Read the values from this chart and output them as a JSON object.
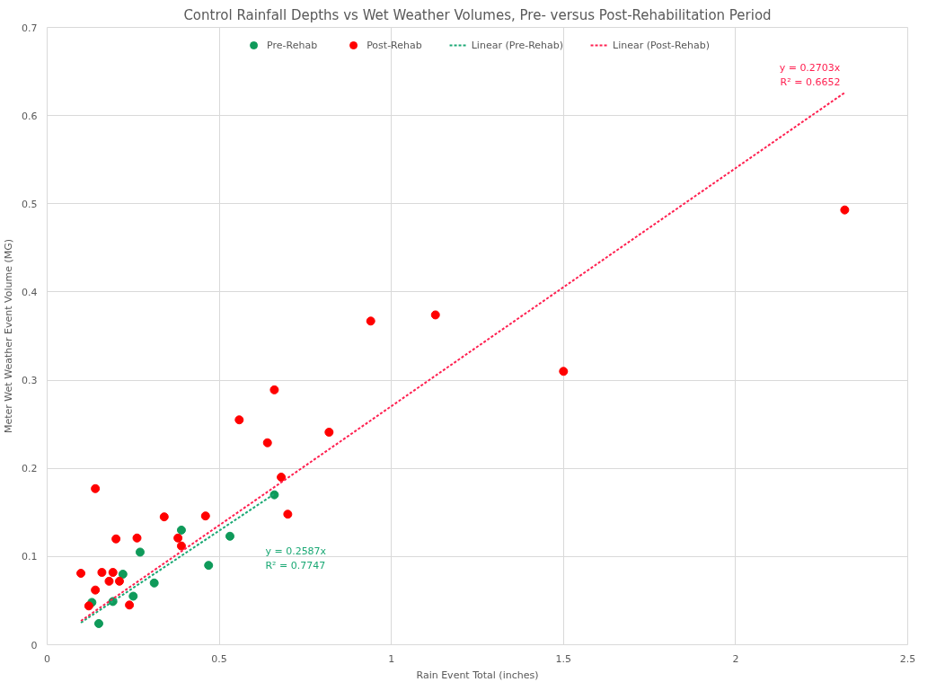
{
  "chart_data": {
    "type": "scatter",
    "title": "Control Rainfall Depths vs Wet Weather Volumes, Pre- versus Post-Rehabilitation Period",
    "xlabel": "Rain Event Total (inches)",
    "ylabel": "Meter Wet Weather Event Volume (MG)",
    "xlim": [
      0,
      2.5
    ],
    "ylim": [
      0,
      0.7
    ],
    "xticks": [
      0,
      0.5,
      1,
      1.5,
      2,
      2.5
    ],
    "yticks": [
      0,
      0.1,
      0.2,
      0.3,
      0.4,
      0.5,
      0.6,
      0.7
    ],
    "grid": true,
    "legend": "top",
    "marker": "circle",
    "series": [
      {
        "name": "Pre-Rehab",
        "color": "#0f9a5a",
        "x": [
          0.13,
          0.15,
          0.191,
          0.22,
          0.25,
          0.27,
          0.311,
          0.39,
          0.469,
          0.531,
          0.66
        ],
        "values": [
          0.048,
          0.024,
          0.049,
          0.08,
          0.055,
          0.105,
          0.07,
          0.13,
          0.09,
          0.123,
          0.17
        ]
      },
      {
        "name": "Post-Rehab",
        "color": "#ff0000",
        "x": [
          0.14,
          0.098,
          0.121,
          0.14,
          0.159,
          0.191,
          0.18,
          0.21,
          0.2,
          0.239,
          0.261,
          0.34,
          0.38,
          0.39,
          0.46,
          0.68,
          0.699,
          0.66,
          0.558,
          0.64,
          0.819,
          1.5,
          0.94,
          1.128,
          2.317
        ],
        "values": [
          0.177,
          0.081,
          0.044,
          0.062,
          0.082,
          0.082,
          0.072,
          0.072,
          0.12,
          0.045,
          0.121,
          0.145,
          0.121,
          0.112,
          0.146,
          0.19,
          0.148,
          0.289,
          0.255,
          0.229,
          0.241,
          0.31,
          0.367,
          0.374,
          0.493
        ]
      },
      {
        "name": "Linear (Pre-Rehab)",
        "type": "line",
        "line_style": "dotted",
        "marker": "none",
        "color": "#1aa874",
        "x": [
          0.098,
          0.66
        ],
        "values": [
          0.025,
          0.171
        ]
      },
      {
        "name": "Linear (Post-Rehab)",
        "type": "line",
        "line_style": "dotted",
        "marker": "none",
        "color": "#ff2050",
        "x": [
          0.098,
          2.317
        ],
        "values": [
          0.027,
          0.626
        ]
      }
    ],
    "annotations": [
      "y = 0.2587x",
      "R² = 0.7747",
      "y = 0.2703x",
      "R² = 0.6652"
    ]
  }
}
